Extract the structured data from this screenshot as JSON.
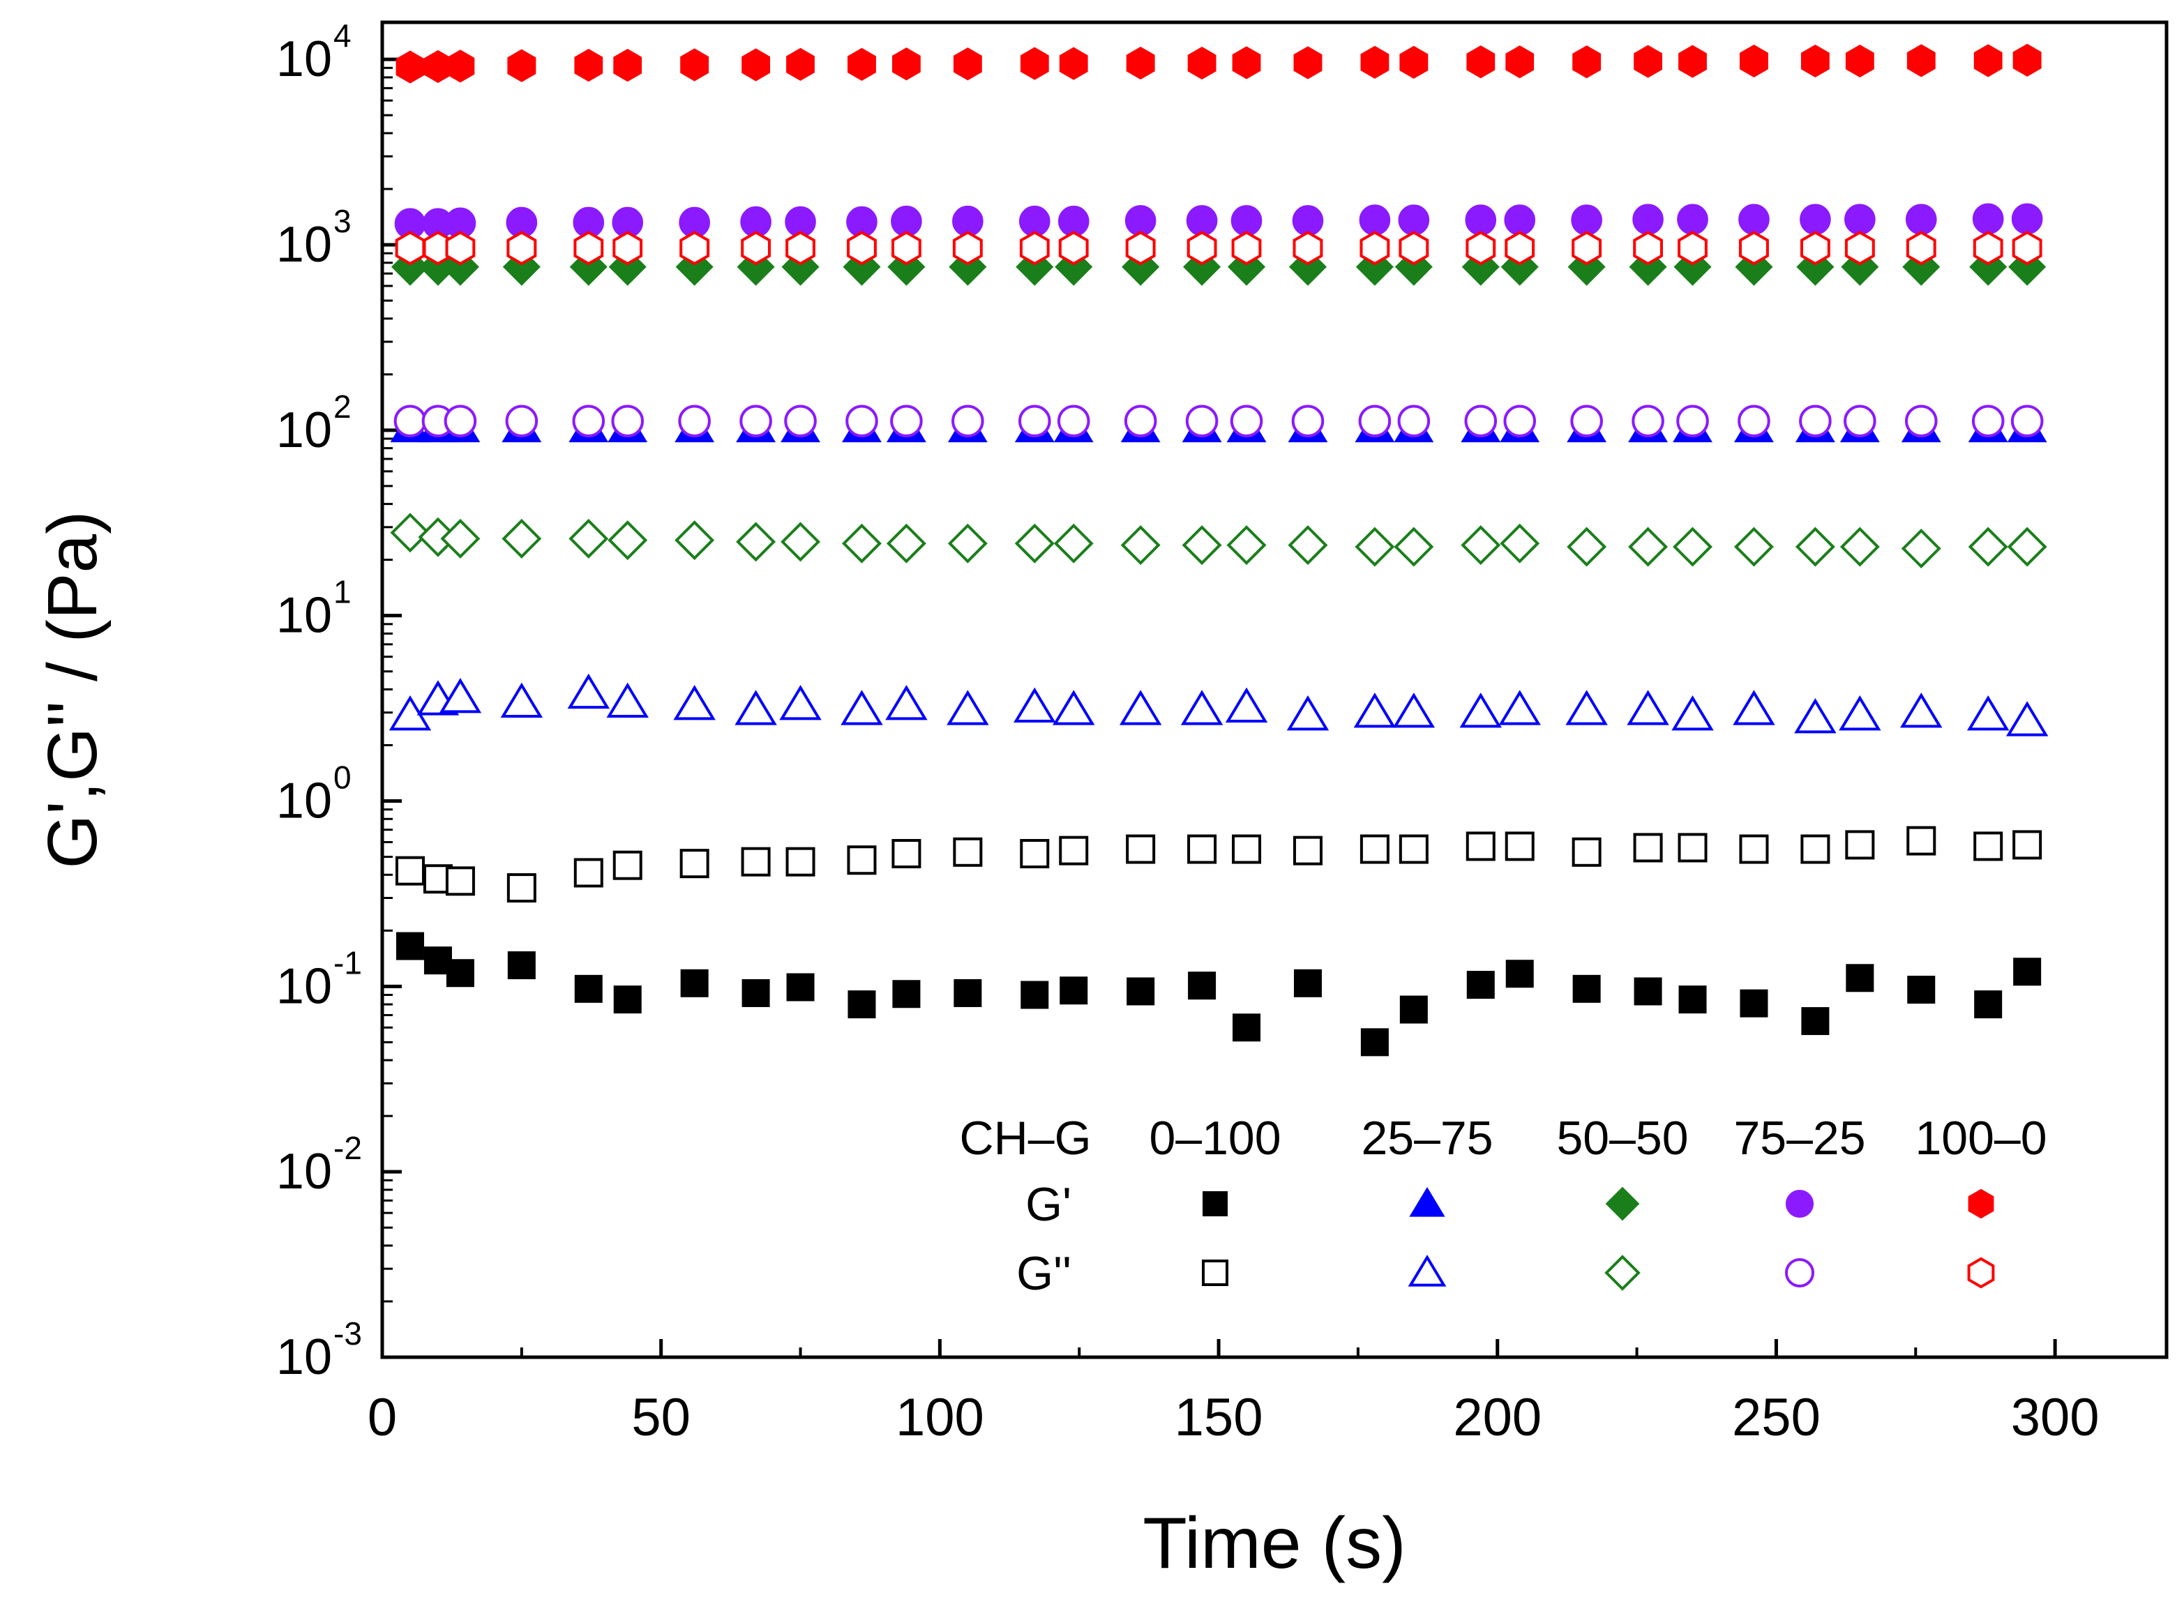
{
  "chart_data": {
    "type": "scatter",
    "title": "",
    "xlabel": "Time (s)",
    "ylabel": "G',G'' / (Pa)",
    "xlim": [
      0,
      320
    ],
    "ylim_log10": [
      -3,
      4.2
    ],
    "y_scale": "log",
    "x_ticks": [
      0,
      50,
      100,
      150,
      200,
      250,
      300
    ],
    "x_tick_labels": [
      "0",
      "50",
      "100",
      "150",
      "200",
      "250",
      "300"
    ],
    "y_ticks": [
      {
        "exp": 4,
        "base": "10",
        "sup": "4"
      },
      {
        "exp": 3,
        "base": "10",
        "sup": "3"
      },
      {
        "exp": 2,
        "base": "10",
        "sup": "2"
      },
      {
        "exp": 1,
        "base": "10",
        "sup": "1"
      },
      {
        "exp": 0,
        "base": "10",
        "sup": "0"
      },
      {
        "exp": -1,
        "base": "10",
        "sup": "-1"
      },
      {
        "exp": -2,
        "base": "10",
        "sup": "-2"
      },
      {
        "exp": -3,
        "base": "10",
        "sup": "-3"
      }
    ],
    "x": [
      5,
      10,
      14,
      25,
      37,
      44,
      56,
      67,
      75,
      86,
      94,
      105,
      117,
      124,
      136,
      147,
      155,
      166,
      178,
      185,
      197,
      204,
      216,
      227,
      235,
      246,
      257,
      265,
      276,
      288,
      295
    ],
    "series": [
      {
        "name": "G' 0–100",
        "ratio": "0–100",
        "modulus": "G'",
        "shape": "square",
        "filled": true,
        "color": "#000000",
        "values": [
          0.165,
          0.138,
          0.118,
          0.13,
          0.097,
          0.085,
          0.104,
          0.092,
          0.099,
          0.08,
          0.091,
          0.092,
          0.09,
          0.095,
          0.094,
          0.101,
          0.06,
          0.104,
          0.05,
          0.075,
          0.102,
          0.117,
          0.097,
          0.094,
          0.085,
          0.081,
          0.065,
          0.111,
          0.096,
          0.08,
          0.12
        ]
      },
      {
        "name": "G'' 0–100",
        "ratio": "0–100",
        "modulus": "G''",
        "shape": "square",
        "filled": false,
        "color": "#000000",
        "values": [
          0.42,
          0.38,
          0.37,
          0.34,
          0.41,
          0.45,
          0.46,
          0.47,
          0.47,
          0.48,
          0.52,
          0.53,
          0.52,
          0.54,
          0.55,
          0.55,
          0.55,
          0.54,
          0.55,
          0.55,
          0.57,
          0.57,
          0.53,
          0.56,
          0.56,
          0.55,
          0.55,
          0.58,
          0.61,
          0.57,
          0.58
        ]
      },
      {
        "name": "G' 25–75",
        "ratio": "25–75",
        "modulus": "G'",
        "shape": "triangle",
        "filled": true,
        "color": "#0000ff",
        "values": [
          103,
          103,
          103,
          103,
          103,
          103,
          103,
          103,
          103,
          103,
          103,
          103,
          103,
          103,
          103,
          103,
          103,
          103,
          103,
          103,
          103,
          103,
          103,
          103,
          103,
          103,
          103,
          103,
          103,
          103,
          103
        ]
      },
      {
        "name": "G'' 25–75",
        "ratio": "25–75",
        "modulus": "G''",
        "shape": "triangle",
        "filled": false,
        "color": "#0000ff",
        "values": [
          2.9,
          3.5,
          3.6,
          3.4,
          3.8,
          3.4,
          3.3,
          3.1,
          3.3,
          3.1,
          3.3,
          3.1,
          3.2,
          3.1,
          3.1,
          3.1,
          3.2,
          2.9,
          3.0,
          3.0,
          3.0,
          3.1,
          3.1,
          3.1,
          2.9,
          3.1,
          2.8,
          2.9,
          3.0,
          2.9,
          2.7
        ]
      },
      {
        "name": "G' 50–50",
        "ratio": "50–50",
        "modulus": "G'",
        "shape": "diamond",
        "filled": true,
        "color": "#1a7f1a",
        "values": [
          760,
          760,
          760,
          760,
          760,
          760,
          760,
          760,
          760,
          760,
          760,
          760,
          760,
          760,
          760,
          760,
          760,
          760,
          760,
          760,
          760,
          760,
          760,
          760,
          760,
          760,
          760,
          760,
          760,
          760,
          760
        ]
      },
      {
        "name": "G'' 50–50",
        "ratio": "50–50",
        "modulus": "G''",
        "shape": "diamond",
        "filled": false,
        "color": "#1a7f1a",
        "values": [
          28,
          26.5,
          26,
          26,
          26,
          25.5,
          25.5,
          25,
          25,
          24.5,
          24.5,
          24.5,
          24.5,
          24.5,
          24,
          24,
          24,
          24,
          23.5,
          23.5,
          24,
          24.5,
          23.5,
          23.5,
          23.5,
          23.5,
          23.5,
          23.5,
          23,
          23.5,
          23.5
        ]
      },
      {
        "name": "G' 75–25",
        "ratio": "75–25",
        "modulus": "G'",
        "shape": "circle",
        "filled": true,
        "color": "#8b1aff",
        "values": [
          1300,
          1300,
          1310,
          1320,
          1320,
          1320,
          1320,
          1330,
          1330,
          1330,
          1340,
          1340,
          1340,
          1340,
          1350,
          1350,
          1350,
          1350,
          1360,
          1360,
          1360,
          1360,
          1360,
          1370,
          1370,
          1370,
          1370,
          1370,
          1370,
          1380,
          1380
        ]
      },
      {
        "name": "G'' 75–25",
        "ratio": "75–25",
        "modulus": "G''",
        "shape": "circle",
        "filled": false,
        "color": "#8b1aff",
        "values": [
          112,
          112,
          112,
          112,
          112,
          112,
          112,
          112,
          112,
          112,
          112,
          112,
          112,
          112,
          112,
          112,
          112,
          112,
          112,
          112,
          112,
          112,
          112,
          112,
          112,
          112,
          112,
          112,
          112,
          112,
          112
        ]
      },
      {
        "name": "G' 100–0",
        "ratio": "100–0",
        "modulus": "G'",
        "shape": "hexagon",
        "filled": true,
        "color": "#ff0000",
        "values": [
          9100,
          9150,
          9200,
          9250,
          9300,
          9300,
          9350,
          9350,
          9400,
          9400,
          9450,
          9450,
          9500,
          9500,
          9550,
          9550,
          9600,
          9600,
          9650,
          9650,
          9700,
          9700,
          9700,
          9750,
          9750,
          9800,
          9800,
          9800,
          9850,
          9850,
          9900
        ]
      },
      {
        "name": "G'' 100–0",
        "ratio": "100–0",
        "modulus": "G''",
        "shape": "hexagon",
        "filled": false,
        "color": "#ff0000",
        "values": [
          960,
          960,
          960,
          960,
          960,
          960,
          960,
          960,
          960,
          960,
          960,
          960,
          960,
          960,
          960,
          960,
          960,
          960,
          960,
          960,
          960,
          960,
          960,
          960,
          960,
          960,
          960,
          960,
          960,
          960,
          960
        ]
      }
    ],
    "legend": {
      "position": "bottom-right",
      "header": "CH–G",
      "ratios": [
        "0–100",
        "25–75",
        "50–50",
        "75–25",
        "100–0"
      ],
      "rows": [
        "G'",
        "G''"
      ]
    }
  }
}
